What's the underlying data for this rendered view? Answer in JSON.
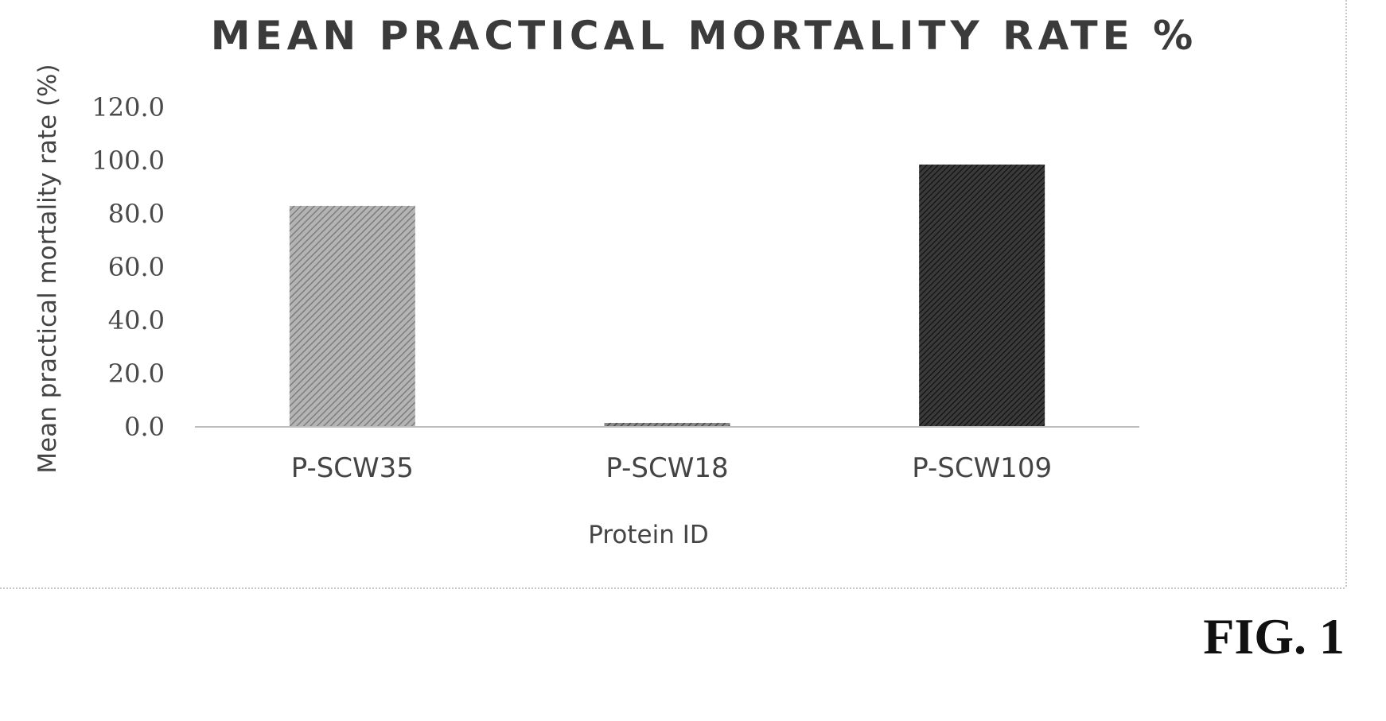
{
  "figure_label": "FIG. 1",
  "chart_data": {
    "type": "bar",
    "title": "MEAN PRACTICAL MORTALITY RATE %",
    "xlabel": "Protein ID",
    "ylabel": "Mean practical mortality rate (%)",
    "categories": [
      "P-SCW35",
      "P-SCW18",
      "P-SCW109"
    ],
    "values": [
      83.0,
      1.5,
      98.5
    ],
    "ylim": [
      0,
      120
    ],
    "y_ticks": [
      "0.0",
      "20.0",
      "40.0",
      "60.0",
      "80.0",
      "100.0",
      "120.0"
    ],
    "grid": false,
    "legend": "none",
    "bar_colors": [
      "#9a9a9a",
      "#5a5a5a",
      "#2e2e2e"
    ],
    "axis_color": "#bdbdbd",
    "frame_color": "#b5b5b5"
  }
}
